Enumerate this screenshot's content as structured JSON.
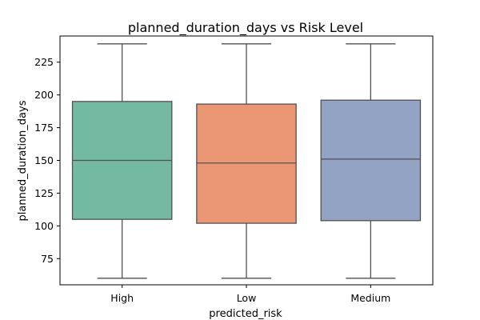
{
  "chart_data": {
    "type": "boxplot",
    "title": "planned_duration_days vs Risk Level",
    "xlabel": "predicted_risk",
    "ylabel": "planned_duration_days",
    "ylim": [
      55,
      245
    ],
    "yticks": [
      75,
      100,
      125,
      150,
      175,
      200,
      225
    ],
    "grid": false,
    "categories": [
      "High",
      "Low",
      "Medium"
    ],
    "boxes": [
      {
        "category": "High",
        "min": 60,
        "q1": 105,
        "median": 150,
        "q3": 195,
        "max": 239,
        "color": "#74b9a1"
      },
      {
        "category": "Low",
        "min": 60,
        "q1": 102,
        "median": 148,
        "q3": 193,
        "max": 239,
        "color": "#eb9774"
      },
      {
        "category": "Medium",
        "min": 60,
        "q1": 104,
        "median": 151,
        "q3": 196,
        "max": 239,
        "color": "#93a3c4"
      }
    ],
    "line_color": "#505050"
  }
}
